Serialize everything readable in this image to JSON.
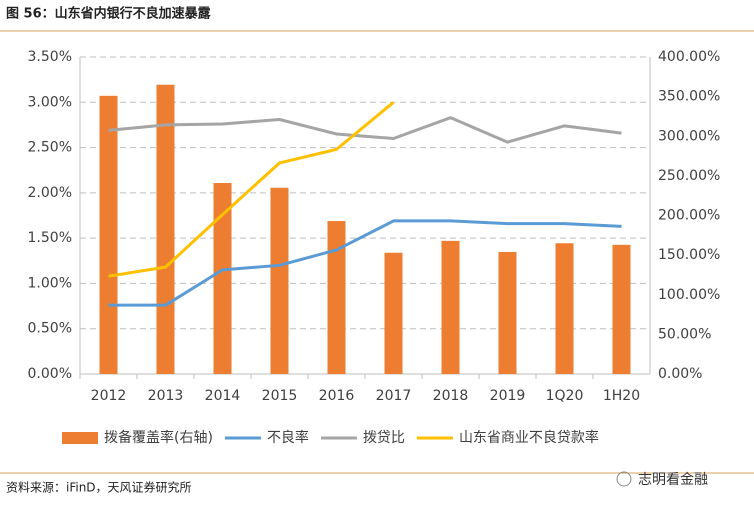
{
  "chart_data": {
    "type": "bar",
    "title": "图 56：山东省内银行不良加速暴露",
    "source": "资料来源：iFinD，天风证券研究所",
    "watermark": "志明看金融",
    "categories": [
      "2012",
      "2013",
      "2014",
      "2015",
      "2016",
      "2017",
      "2018",
      "2019",
      "1Q20",
      "1H20"
    ],
    "series": [
      {
        "name": "拨备覆盖率(右轴)",
        "type": "bar",
        "axis": "y2",
        "color": "#ED7D31",
        "values": [
          351,
          365,
          241,
          235,
          193,
          153,
          168,
          154,
          165,
          163
        ]
      },
      {
        "name": "不良率",
        "type": "line",
        "color": "#5B9BD5",
        "values": [
          0.76,
          0.76,
          1.15,
          1.2,
          1.37,
          1.69,
          1.69,
          1.66,
          1.66,
          1.63
        ]
      },
      {
        "name": "拨贷比",
        "type": "line",
        "color": "#A5A5A5",
        "values": [
          2.69,
          2.75,
          2.76,
          2.81,
          2.65,
          2.6,
          2.83,
          2.56,
          2.74,
          2.66
        ]
      },
      {
        "name": "山东省商业不良贷款率",
        "type": "line",
        "color": "#FFC000",
        "values": [
          1.08,
          1.18,
          1.76,
          2.33,
          2.48,
          3.0,
          null,
          null,
          null,
          null
        ]
      }
    ],
    "ylim": [
      0,
      3.5
    ],
    "yticks": [
      {
        "value": 0,
        "label": "0.00%"
      },
      {
        "value": 0.5,
        "label": "0.50%"
      },
      {
        "value": 1,
        "label": "1.00%"
      },
      {
        "value": 1.5,
        "label": "1.50%"
      },
      {
        "value": 2,
        "label": "2.00%"
      },
      {
        "value": 2.5,
        "label": "2.50%"
      },
      {
        "value": 3,
        "label": "3.00%"
      },
      {
        "value": 3.5,
        "label": "3.50%"
      }
    ],
    "y2lim": [
      0,
      400
    ],
    "y2ticks": [
      {
        "value": 0,
        "label": "0.00%"
      },
      {
        "value": 50,
        "label": "50.00%"
      },
      {
        "value": 100,
        "label": "100.00%"
      },
      {
        "value": 150,
        "label": "150.00%"
      },
      {
        "value": 200,
        "label": "200.00%"
      },
      {
        "value": 250,
        "label": "250.00%"
      },
      {
        "value": 300,
        "label": "300.00%"
      },
      {
        "value": 350,
        "label": "350.00%"
      },
      {
        "value": 400,
        "label": "400.00%"
      }
    ],
    "grid": true,
    "legend": "bottom"
  }
}
